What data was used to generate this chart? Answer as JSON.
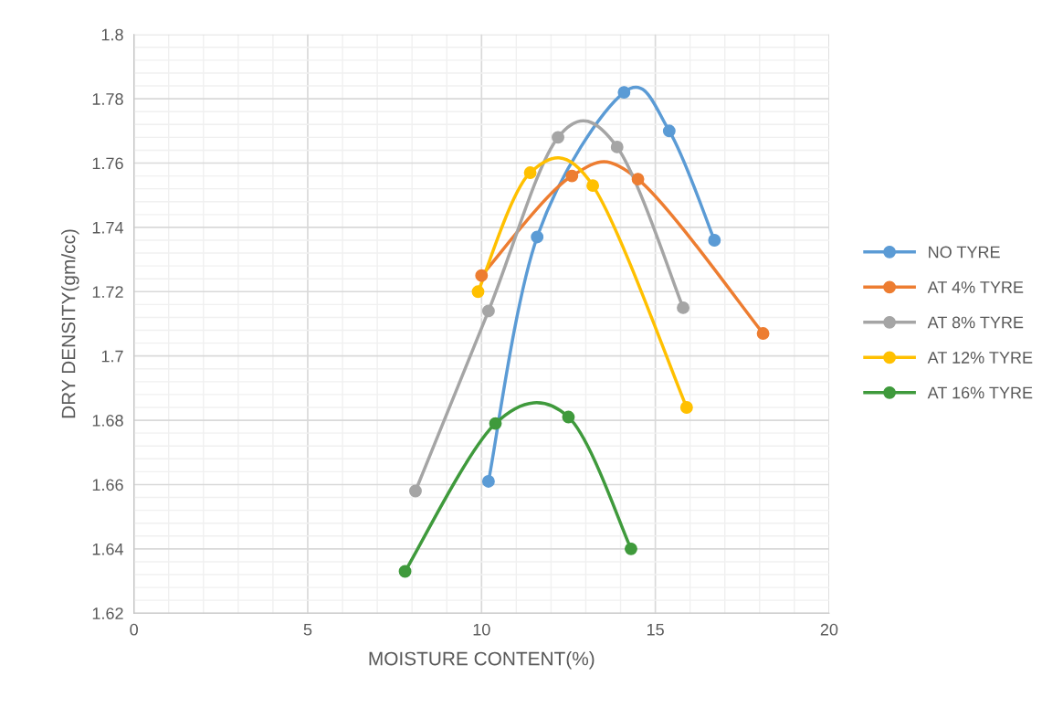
{
  "chart_data": {
    "type": "line",
    "xlabel": "MOISTURE CONTENT(%)",
    "ylabel": "DRY DENSITY(gm/cc)",
    "xlim": [
      0,
      20
    ],
    "xticks": [
      0,
      5,
      10,
      15,
      20
    ],
    "ylim": [
      1.62,
      1.8
    ],
    "yticks": [
      1.62,
      1.64,
      1.66,
      1.68,
      1.7,
      1.72,
      1.74,
      1.76,
      1.78,
      1.8
    ],
    "grid": true,
    "legend": "right",
    "marker": "circle",
    "line_style": "solid",
    "series": [
      {
        "name": "NO TYRE",
        "color": "#5b9bd5",
        "x": [
          10.2,
          11.6,
          14.1,
          15.4,
          16.7
        ],
        "values": [
          1.661,
          1.737,
          1.782,
          1.77,
          1.736
        ]
      },
      {
        "name": "AT 4% TYRE",
        "color": "#ed7d31",
        "x": [
          10.0,
          12.6,
          14.5,
          18.1
        ],
        "values": [
          1.725,
          1.756,
          1.755,
          1.707
        ]
      },
      {
        "name": "AT 8% TYRE",
        "color": "#a5a5a5",
        "x": [
          8.1,
          10.2,
          12.2,
          13.9,
          15.8
        ],
        "values": [
          1.658,
          1.714,
          1.768,
          1.765,
          1.715
        ]
      },
      {
        "name": "AT 12% TYRE",
        "color": "#ffc000",
        "x": [
          9.9,
          11.4,
          13.2,
          15.9
        ],
        "values": [
          1.72,
          1.757,
          1.753,
          1.684
        ]
      },
      {
        "name": "AT 16% TYRE",
        "color": "#3f9a3c",
        "x": [
          7.8,
          10.4,
          12.5,
          14.3
        ],
        "values": [
          1.633,
          1.679,
          1.681,
          1.64
        ]
      }
    ]
  }
}
